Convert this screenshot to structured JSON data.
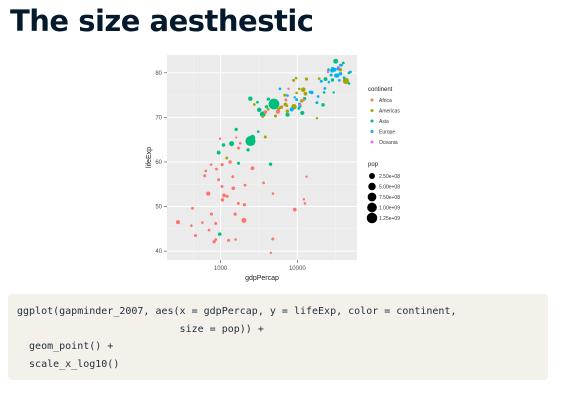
{
  "slide": {
    "title": "The size aesthestic"
  },
  "code": {
    "lines": [
      "ggplot(gapminder_2007, aes(x = gdpPercap, y = lifeExp, color = continent,",
      "                           size = pop)) +",
      "  geom_point() +",
      "  scale_x_log10()"
    ]
  },
  "chart_data": {
    "type": "scatter",
    "xlabel": "gdpPercap",
    "ylabel": "lifeExp",
    "x_scale": "log10",
    "xlim": [
      200,
      60000
    ],
    "ylim": [
      38,
      84
    ],
    "x_ticks": [
      1000,
      10000
    ],
    "x_tick_labels": [
      "1000",
      "10000"
    ],
    "y_ticks": [
      40,
      50,
      60,
      70,
      80
    ],
    "y_tick_labels": [
      "40",
      "50",
      "60",
      "70",
      "80"
    ],
    "grid": true,
    "background": "#ebebeb",
    "colors": {
      "Africa": "#f8766d",
      "Americas": "#a3a500",
      "Asia": "#00bf7d",
      "Europe": "#00b0f6",
      "Oceania": "#e76bf3"
    },
    "legend_color": {
      "title": "continent",
      "entries": [
        "Africa",
        "Americas",
        "Asia",
        "Europe",
        "Oceania"
      ]
    },
    "legend_size": {
      "title": "pop",
      "entries": [
        {
          "label": "2.50e+08",
          "value": 250000000
        },
        {
          "label": "5.00e+08",
          "value": 500000000
        },
        {
          "label": "7.50e+08",
          "value": 750000000
        },
        {
          "label": "1.00e+09",
          "value": 1000000000
        },
        {
          "label": "1.25e+09",
          "value": 1250000000
        }
      ]
    },
    "legend_placement": "right",
    "series": [
      {
        "name": "Africa",
        "points": [
          [
            6223,
            72.3,
            33
          ],
          [
            4797,
            42.7,
            12
          ],
          [
            1441,
            56.7,
            8
          ],
          [
            12570,
            50.7,
            2
          ],
          [
            1217,
            52.3,
            14
          ],
          [
            430,
            49.6,
            8
          ],
          [
            2042,
            50.4,
            18
          ],
          [
            706,
            44.7,
            4
          ],
          [
            1704,
            50.7,
            10
          ],
          [
            986,
            65.2,
            1
          ],
          [
            278,
            46.5,
            65
          ],
          [
            3633,
            55.3,
            4
          ],
          [
            1545,
            48.3,
            18
          ],
          [
            2082,
            54.8,
            8
          ],
          [
            5581,
            71.3,
            80
          ],
          [
            12154,
            51.6,
            1
          ],
          [
            641,
            58.0,
            5
          ],
          [
            690,
            52.9,
            76
          ],
          [
            13206,
            56.7,
            1
          ],
          [
            753,
            59.4,
            2
          ],
          [
            1328,
            60.0,
            23
          ],
          [
            943,
            56.0,
            10
          ],
          [
            579,
            46.4,
            2
          ],
          [
            1463,
            54.1,
            36
          ],
          [
            1569,
            42.6,
            2
          ],
          [
            415,
            45.7,
            3
          ],
          [
            12057,
            73.9,
            6
          ],
          [
            1045,
            59.4,
            19
          ],
          [
            759,
            48.3,
            14
          ],
          [
            1042,
            54.5,
            12
          ],
          [
            1803,
            64.2,
            3
          ],
          [
            10957,
            72.8,
            1
          ],
          [
            3820,
            71.2,
            33
          ],
          [
            824,
            42.1,
            20
          ],
          [
            4811,
            52.9,
            2
          ],
          [
            620,
            56.9,
            12
          ],
          [
            2014,
            46.9,
            135
          ],
          [
            7670,
            76.4,
            1
          ],
          [
            863,
            46.2,
            9
          ],
          [
            1598,
            65.5,
            0
          ],
          [
            1712,
            63.1,
            12
          ],
          [
            863,
            42.6,
            6
          ],
          [
            9270,
            49.3,
            44
          ],
          [
            2602,
            58.6,
            42
          ],
          [
            4513,
            39.6,
            1
          ],
          [
            1107,
            52.5,
            38
          ],
          [
            883,
            58.4,
            6
          ],
          [
            7093,
            73.9,
            10
          ],
          [
            1056,
            51.5,
            30
          ],
          [
            1271,
            42.4,
            12
          ],
          [
            470,
            43.5,
            12
          ]
        ]
      },
      {
        "name": "Americas",
        "points": [
          [
            12779,
            75.3,
            40
          ],
          [
            3822,
            65.6,
            9
          ],
          [
            9066,
            72.4,
            190
          ],
          [
            36319,
            80.7,
            33
          ],
          [
            13172,
            78.6,
            16
          ],
          [
            7007,
            72.9,
            44
          ],
          [
            9645,
            78.8,
            4
          ],
          [
            8948,
            78.3,
            11
          ],
          [
            6025,
            72.2,
            9
          ],
          [
            6873,
            75.0,
            14
          ],
          [
            5728,
            71.9,
            7
          ],
          [
            5186,
            70.3,
            13
          ],
          [
            1202,
            60.9,
            8
          ],
          [
            3548,
            70.2,
            7
          ],
          [
            7321,
            72.6,
            3
          ],
          [
            11978,
            76.2,
            108
          ],
          [
            2749,
            72.9,
            6
          ],
          [
            9809,
            75.5,
            3
          ],
          [
            4173,
            71.8,
            6
          ],
          [
            7409,
            71.4,
            28
          ],
          [
            19329,
            78.7,
            4
          ],
          [
            18009,
            69.8,
            1
          ],
          [
            42952,
            78.2,
            301
          ],
          [
            10611,
            76.4,
            3
          ],
          [
            11416,
            73.7,
            26
          ]
        ]
      },
      {
        "name": "Asia",
        "points": [
          [
            975,
            43.8,
            32
          ],
          [
            29796,
            75.6,
            1
          ],
          [
            1391,
            64.1,
            150
          ],
          [
            1714,
            59.7,
            14
          ],
          [
            4959,
            73.0,
            1319
          ],
          [
            39725,
            82.2,
            7
          ],
          [
            2452,
            64.7,
            1110
          ],
          [
            3541,
            70.7,
            224
          ],
          [
            11606,
            71.0,
            69
          ],
          [
            4471,
            59.5,
            27
          ],
          [
            25523,
            80.7,
            6
          ],
          [
            31656,
            82.6,
            127
          ],
          [
            4519,
            72.5,
            6
          ],
          [
            1593,
            67.3,
            23
          ],
          [
            23348,
            78.6,
            49
          ],
          [
            47307,
            77.6,
            2
          ],
          [
            10461,
            72.0,
            4
          ],
          [
            12452,
            74.2,
            24
          ],
          [
            3096,
            66.8,
            3
          ],
          [
            944,
            62.1,
            48
          ],
          [
            1091,
            63.8,
            28
          ],
          [
            22316,
            75.6,
            3
          ],
          [
            2606,
            65.5,
            169
          ],
          [
            3190,
            71.7,
            91
          ],
          [
            21655,
            72.8,
            28
          ],
          [
            47143,
            80.0,
            5
          ],
          [
            3970,
            72.4,
            20
          ],
          [
            4185,
            74.1,
            19
          ],
          [
            28718,
            78.4,
            23
          ],
          [
            7458,
            70.6,
            65
          ],
          [
            2442,
            74.2,
            85
          ],
          [
            3025,
            73.4,
            4
          ],
          [
            2281,
            62.7,
            22
          ]
        ]
      },
      {
        "name": "Europe",
        "points": [
          [
            5937,
            76.4,
            4
          ],
          [
            36126,
            79.8,
            8
          ],
          [
            33693,
            79.4,
            10
          ],
          [
            7446,
            74.9,
            5
          ],
          [
            10681,
            73.0,
            7
          ],
          [
            14619,
            75.7,
            4
          ],
          [
            22833,
            76.5,
            10
          ],
          [
            35278,
            78.3,
            5
          ],
          [
            33207,
            79.3,
            5
          ],
          [
            30470,
            80.7,
            61
          ],
          [
            32170,
            79.4,
            82
          ],
          [
            27538,
            79.5,
            11
          ],
          [
            18009,
            73.3,
            10
          ],
          [
            36181,
            81.8,
            0
          ],
          [
            40676,
            78.9,
            4
          ],
          [
            28570,
            80.5,
            58
          ],
          [
            9254,
            74.5,
            1
          ],
          [
            36798,
            79.8,
            16
          ],
          [
            49357,
            80.2,
            5
          ],
          [
            15390,
            75.6,
            38
          ],
          [
            20510,
            78.1,
            11
          ],
          [
            10808,
            72.5,
            22
          ],
          [
            9787,
            74.0,
            10
          ],
          [
            18678,
            74.7,
            5
          ],
          [
            25768,
            77.9,
            2
          ],
          [
            28821,
            80.9,
            40
          ],
          [
            33860,
            80.9,
            9
          ],
          [
            37506,
            81.7,
            8
          ],
          [
            8458,
            71.8,
            71
          ],
          [
            33203,
            79.4,
            61
          ]
        ]
      },
      {
        "name": "Oceania",
        "points": [
          [
            34435,
            81.2,
            20
          ],
          [
            25185,
            80.2,
            4
          ]
        ]
      }
    ],
    "point_size_unit": "millions"
  }
}
